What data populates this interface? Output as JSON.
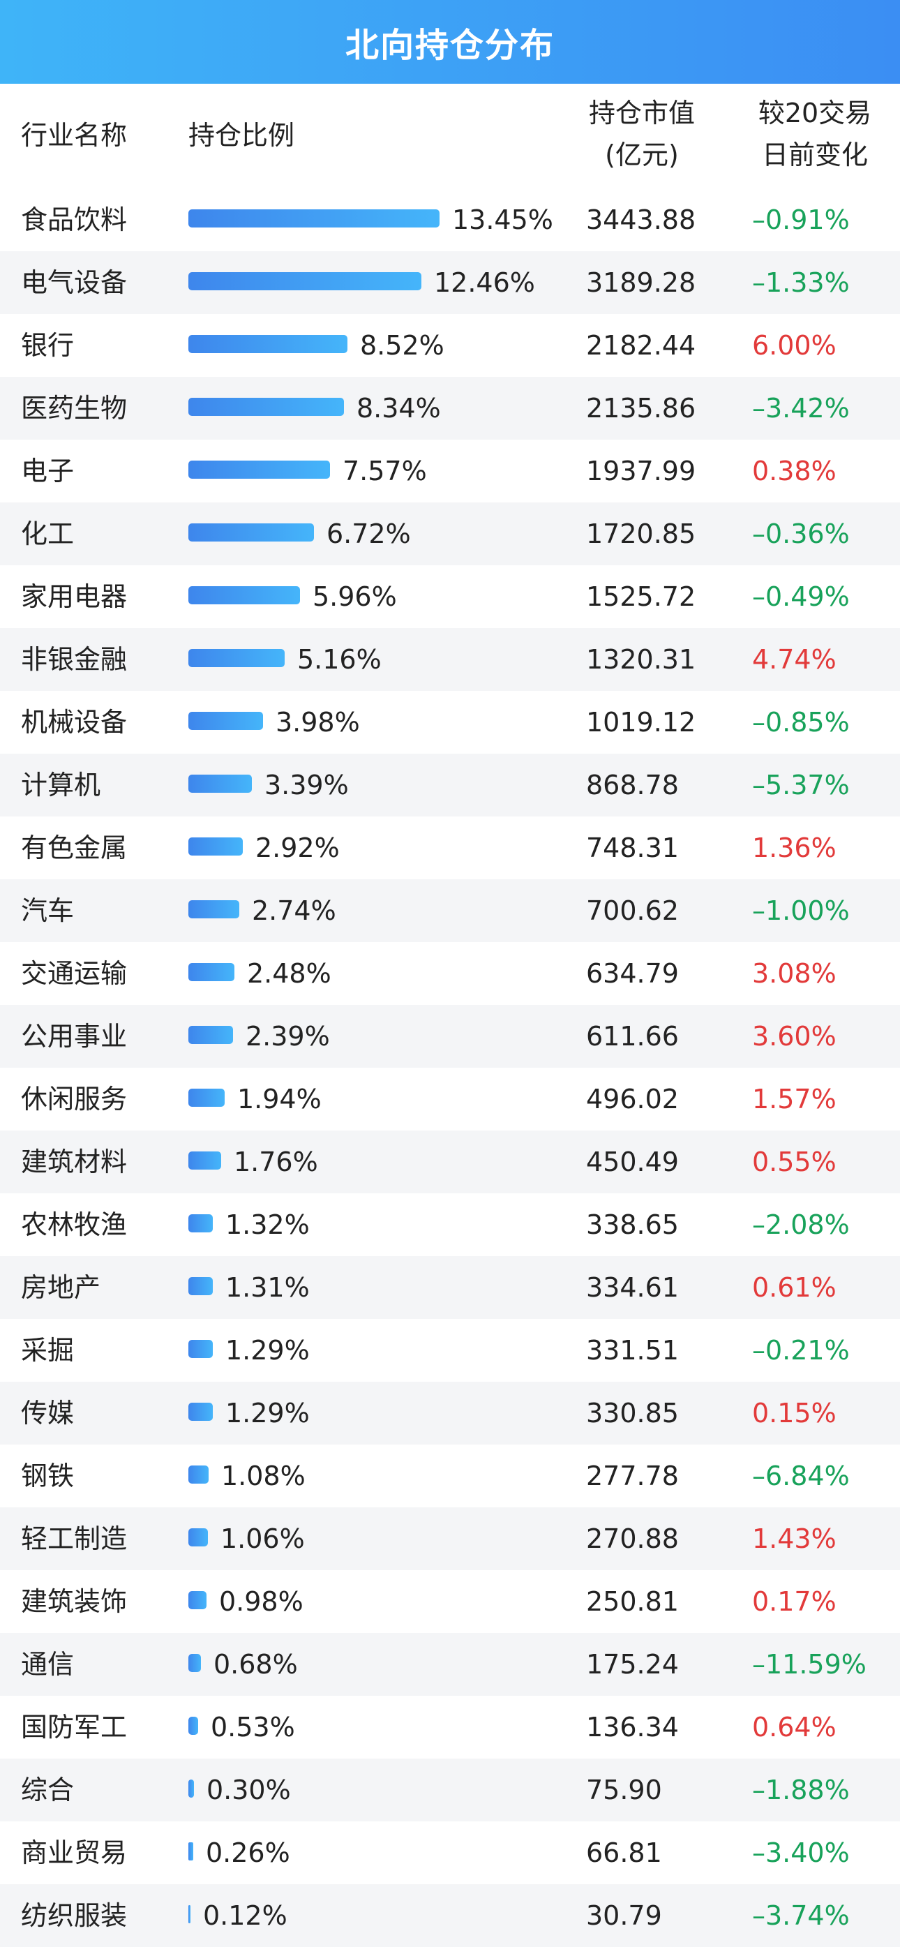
{
  "title": "北向持仓分布",
  "headers": {
    "name": "行业名称",
    "ratio": "持仓比例",
    "value_line1": "持仓市值",
    "value_line2": "(亿元)",
    "change_line1": "较20交易",
    "change_line2": "日前变化"
  },
  "colors": {
    "header_gradient": [
      "#3fb4f8",
      "#3b8ef3"
    ],
    "bar_gradient": [
      "#3e86ec",
      "#45b5fa"
    ],
    "positive": "#e23a3a",
    "negative": "#18a25a",
    "alt_row": "#f4f5f7"
  },
  "chart_data": {
    "type": "bar",
    "categories": [
      "食品饮料",
      "电气设备",
      "银行",
      "医药生物",
      "电子",
      "化工",
      "家用电器",
      "非银金融",
      "机械设备",
      "计算机",
      "有色金属",
      "汽车",
      "交通运输",
      "公用事业",
      "休闲服务",
      "建筑材料",
      "农林牧渔",
      "房地产",
      "采掘",
      "传媒",
      "钢铁",
      "轻工制造",
      "建筑装饰",
      "通信",
      "国防军工",
      "综合",
      "商业贸易",
      "纺织服装"
    ],
    "values": [
      13.45,
      12.46,
      8.52,
      8.34,
      7.57,
      6.72,
      5.96,
      5.16,
      3.98,
      3.39,
      2.92,
      2.74,
      2.48,
      2.39,
      1.94,
      1.76,
      1.32,
      1.31,
      1.29,
      1.29,
      1.08,
      1.06,
      0.98,
      0.68,
      0.53,
      0.3,
      0.26,
      0.12
    ],
    "value_labels": [
      "13.45%",
      "12.46%",
      "8.52%",
      "8.34%",
      "7.57%",
      "6.72%",
      "5.96%",
      "5.16%",
      "3.98%",
      "3.39%",
      "2.92%",
      "2.74%",
      "2.48%",
      "2.39%",
      "1.94%",
      "1.76%",
      "1.32%",
      "1.31%",
      "1.29%",
      "1.29%",
      "1.08%",
      "1.06%",
      "0.98%",
      "0.68%",
      "0.53%",
      "0.30%",
      "0.26%",
      "0.12%"
    ],
    "market_value": [
      "3443.88",
      "3189.28",
      "2182.44",
      "2135.86",
      "1937.99",
      "1720.85",
      "1525.72",
      "1320.31",
      "1019.12",
      "868.78",
      "748.31",
      "700.62",
      "634.79",
      "611.66",
      "496.02",
      "450.49",
      "338.65",
      "334.61",
      "331.51",
      "330.85",
      "277.78",
      "270.88",
      "250.81",
      "175.24",
      "136.34",
      "75.90",
      "66.81",
      "30.79"
    ],
    "change": [
      "–0.91%",
      "–1.33%",
      "6.00%",
      "–3.42%",
      "0.38%",
      "–0.36%",
      "–0.49%",
      "4.74%",
      "–0.85%",
      "–5.37%",
      "1.36%",
      "–1.00%",
      "3.08%",
      "3.60%",
      "1.57%",
      "0.55%",
      "–2.08%",
      "0.61%",
      "–0.21%",
      "0.15%",
      "–6.84%",
      "1.43%",
      "0.17%",
      "–11.59%",
      "0.64%",
      "–1.88%",
      "–3.40%",
      "–3.74%"
    ],
    "title": "北向持仓分布",
    "xlabel": "",
    "ylabel": "持仓比例"
  }
}
